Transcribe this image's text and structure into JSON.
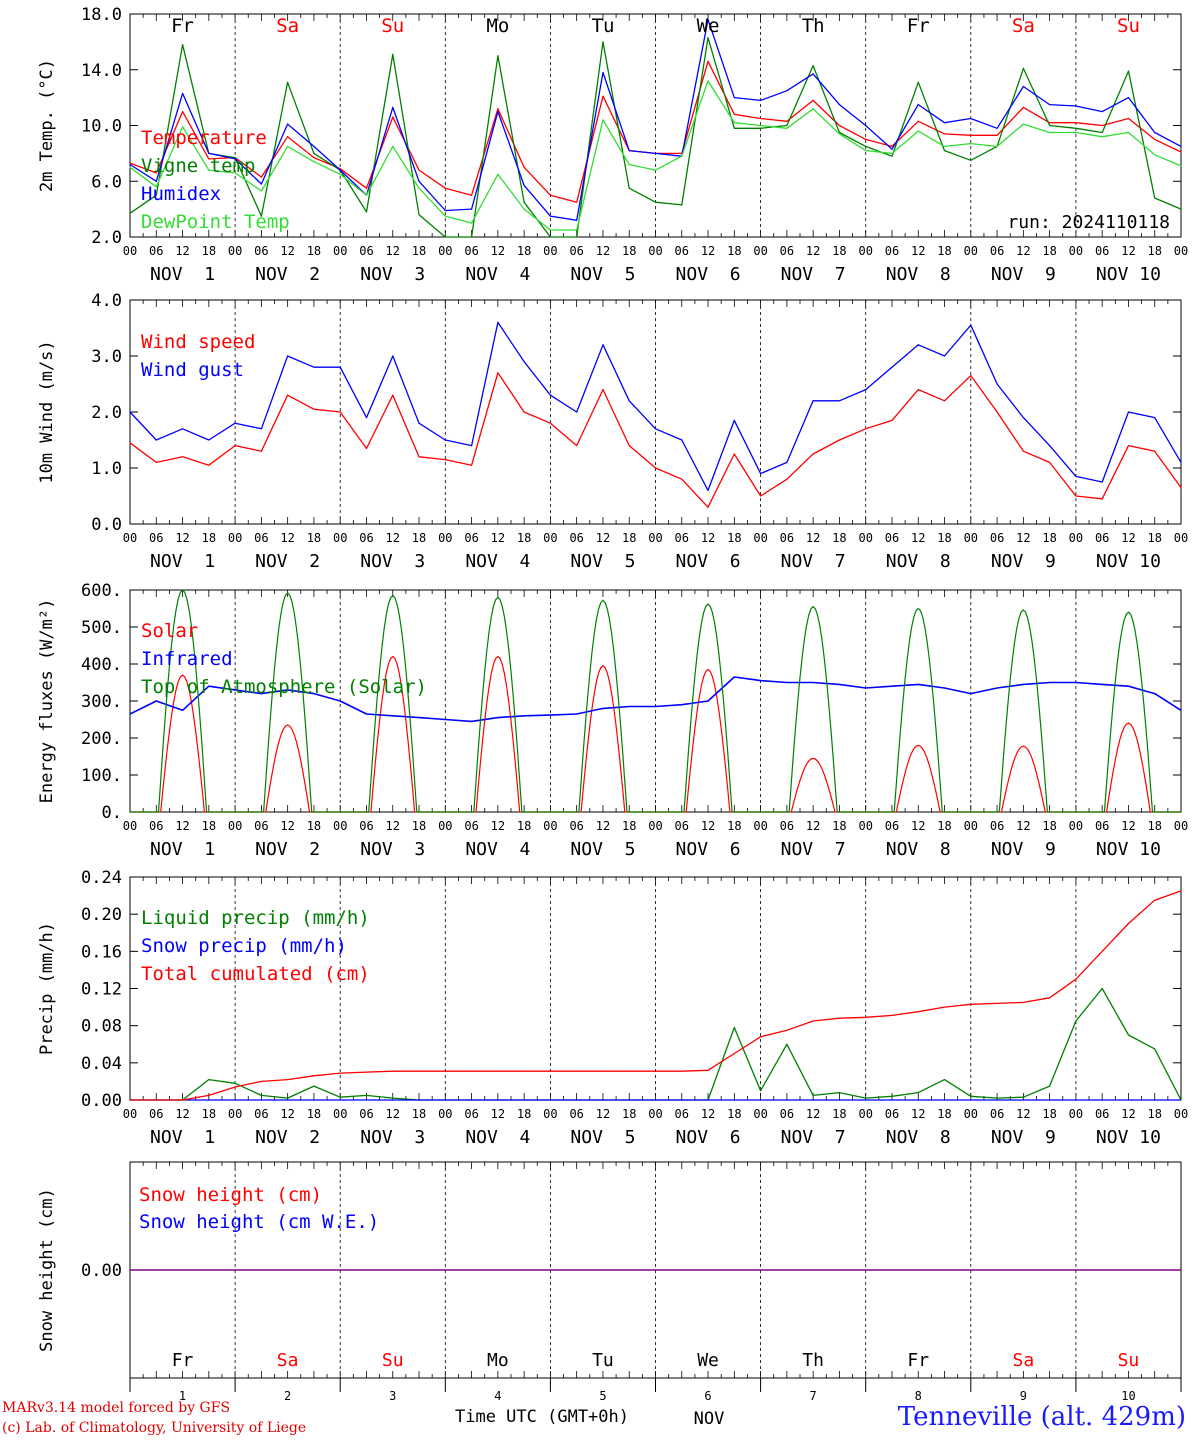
{
  "colors": {
    "red": "#ff0000",
    "green": "#008000",
    "blue": "#0000ff",
    "lightgreen": "#33dd33",
    "purple": "#7f007f",
    "weekend": "#ff0000",
    "weekday": "#000000"
  },
  "days": [
    {
      "weekday": "Fr",
      "weekend": false,
      "date_label": "NOV  1",
      "num": "1"
    },
    {
      "weekday": "Sa",
      "weekend": true,
      "date_label": "NOV  2",
      "num": "2"
    },
    {
      "weekday": "Su",
      "weekend": true,
      "date_label": "NOV  3",
      "num": "3"
    },
    {
      "weekday": "Mo",
      "weekend": false,
      "date_label": "NOV  4",
      "num": "4"
    },
    {
      "weekday": "Tu",
      "weekend": false,
      "date_label": "NOV  5",
      "num": "5"
    },
    {
      "weekday": "We",
      "weekend": false,
      "date_label": "NOV  6",
      "num": "6"
    },
    {
      "weekday": "Th",
      "weekend": false,
      "date_label": "NOV  7",
      "num": "7"
    },
    {
      "weekday": "Fr",
      "weekend": false,
      "date_label": "NOV  8",
      "num": "8"
    },
    {
      "weekday": "Sa",
      "weekend": true,
      "date_label": "NOV  9",
      "num": "9"
    },
    {
      "weekday": "Su",
      "weekend": true,
      "date_label": "NOV 10",
      "num": "10"
    }
  ],
  "hour_ticks": [
    "00",
    "06",
    "12",
    "18"
  ],
  "footer": {
    "credit_1": "MARv3.14 model forced by GFS",
    "credit_2": "(c) Lab. of Climatology, University of Liege",
    "time_axis": "Time UTC (GMT+0h)",
    "month": "NOV",
    "station": "Tenneville (alt. 429m)"
  },
  "chart_data": [
    {
      "type": "line",
      "ylabel": "2m Temp. (°C)",
      "ylim": [
        2.0,
        18.0
      ],
      "yticks": [
        "2.0",
        "6.0",
        "10.0",
        "14.0",
        "18.0"
      ],
      "annotation": "run: 2024110118",
      "x_hours": [
        0,
        6,
        12,
        18,
        24,
        30,
        36,
        42,
        48,
        54,
        60,
        66,
        72,
        78,
        84,
        90,
        96,
        102,
        108,
        114,
        120,
        126,
        132,
        138,
        144,
        150,
        156,
        162,
        168,
        174,
        180,
        186,
        192,
        198,
        204,
        210,
        216,
        222,
        228,
        234,
        240
      ],
      "series": [
        {
          "name": "Temperature",
          "color": "red",
          "values": [
            7.3,
            6.6,
            11.0,
            7.6,
            7.7,
            6.3,
            9.2,
            7.7,
            6.9,
            5.5,
            10.6,
            6.8,
            5.5,
            5.0,
            11.2,
            7.0,
            5.0,
            4.5,
            12.1,
            8.2,
            8.0,
            8.0,
            14.6,
            10.8,
            10.5,
            10.3,
            11.8,
            10.0,
            9.0,
            8.5,
            10.3,
            9.4,
            9.3,
            9.3,
            11.3,
            10.2,
            10.2,
            10.0,
            10.5,
            9.0,
            8.1
          ]
        },
        {
          "name": "Vigne temp",
          "color": "green",
          "values": [
            3.7,
            5.0,
            15.8,
            8.0,
            7.7,
            3.5,
            13.1,
            8.0,
            6.8,
            3.8,
            15.1,
            3.6,
            1.0,
            0.5,
            15.0,
            4.5,
            1.0,
            1.0,
            16.0,
            5.5,
            4.5,
            4.3,
            16.3,
            9.8,
            9.8,
            10.0,
            14.3,
            9.5,
            8.5,
            7.8,
            13.1,
            8.2,
            7.5,
            8.5,
            14.1,
            10.0,
            9.8,
            9.5,
            13.9,
            4.8,
            4.0
          ]
        },
        {
          "name": "Humidex",
          "color": "blue",
          "values": [
            7.2,
            6.0,
            12.3,
            8.0,
            7.6,
            5.8,
            10.1,
            8.5,
            6.8,
            5.0,
            11.3,
            6.0,
            3.9,
            4.0,
            11.0,
            5.7,
            3.5,
            3.2,
            13.8,
            8.2,
            8.0,
            7.8,
            17.6,
            12.0,
            11.8,
            12.5,
            13.7,
            11.5,
            10.0,
            8.3,
            11.5,
            10.2,
            10.5,
            9.8,
            12.8,
            11.5,
            11.4,
            11.0,
            12.0,
            9.5,
            8.5
          ]
        },
        {
          "name": "DewPoint Temp",
          "color": "lightgreen",
          "values": [
            7.0,
            5.6,
            9.9,
            6.8,
            6.6,
            5.3,
            8.5,
            7.4,
            6.5,
            5.0,
            8.5,
            5.5,
            3.5,
            3.0,
            6.5,
            4.0,
            2.5,
            2.5,
            10.4,
            7.2,
            6.8,
            7.8,
            13.2,
            10.2,
            10.0,
            9.8,
            11.2,
            9.4,
            8.2,
            8.0,
            9.6,
            8.5,
            8.7,
            8.5,
            10.1,
            9.5,
            9.5,
            9.2,
            9.5,
            7.9,
            7.1
          ]
        }
      ]
    },
    {
      "type": "line",
      "ylabel": "10m Wind (m/s)",
      "ylim": [
        0.0,
        4.0
      ],
      "yticks": [
        "0.0",
        "1.0",
        "2.0",
        "3.0",
        "4.0"
      ],
      "x_hours": [
        0,
        6,
        12,
        18,
        24,
        30,
        36,
        42,
        48,
        54,
        60,
        66,
        72,
        78,
        84,
        90,
        96,
        102,
        108,
        114,
        120,
        126,
        132,
        138,
        144,
        150,
        156,
        162,
        168,
        174,
        180,
        186,
        192,
        198,
        204,
        210,
        216,
        222,
        228,
        234,
        240
      ],
      "series": [
        {
          "name": "Wind speed",
          "color": "red",
          "values": [
            1.45,
            1.1,
            1.2,
            1.05,
            1.4,
            1.3,
            2.3,
            2.05,
            2.0,
            1.35,
            2.3,
            1.2,
            1.15,
            1.05,
            2.7,
            2.0,
            1.8,
            1.4,
            2.4,
            1.4,
            1.0,
            0.8,
            0.3,
            1.25,
            0.5,
            0.8,
            1.25,
            1.5,
            1.7,
            1.85,
            2.4,
            2.2,
            2.65,
            2.0,
            1.3,
            1.1,
            0.5,
            0.45,
            1.4,
            1.3,
            0.65
          ]
        },
        {
          "name": "Wind gust",
          "color": "blue",
          "values": [
            2.0,
            1.5,
            1.7,
            1.5,
            1.8,
            1.7,
            3.0,
            2.8,
            2.8,
            1.9,
            3.0,
            1.8,
            1.5,
            1.4,
            3.6,
            2.9,
            2.3,
            2.0,
            3.2,
            2.2,
            1.7,
            1.5,
            0.6,
            1.85,
            0.9,
            1.1,
            2.2,
            2.2,
            2.4,
            2.8,
            3.2,
            3.0,
            3.55,
            2.5,
            1.9,
            1.4,
            0.85,
            0.75,
            2.0,
            1.9,
            1.1
          ]
        }
      ]
    },
    {
      "type": "line",
      "ylabel": "Energy fluxes (W/m²)",
      "ylim": [
        0,
        600
      ],
      "yticks": [
        "0.",
        "100.",
        "200.",
        "300.",
        "400.",
        "500.",
        "600."
      ],
      "x_hours": [
        0,
        6,
        12,
        18,
        24,
        30,
        36,
        42,
        48,
        54,
        60,
        66,
        72,
        78,
        84,
        90,
        96,
        102,
        108,
        114,
        120,
        126,
        132,
        138,
        144,
        150,
        156,
        162,
        168,
        174,
        180,
        186,
        192,
        198,
        204,
        210,
        216,
        222,
        228,
        234,
        240
      ],
      "series": [
        {
          "name": "Solar",
          "color": "red",
          "peaks": [
            370,
            235,
            420,
            420,
            395,
            385,
            145,
            180,
            178,
            240
          ],
          "peak_hour": 12
        },
        {
          "name": "Infrared",
          "color": "blue",
          "values": [
            265,
            300,
            275,
            340,
            330,
            320,
            330,
            320,
            300,
            265,
            260,
            255,
            250,
            245,
            255,
            260,
            262,
            265,
            280,
            285,
            285,
            290,
            300,
            365,
            355,
            350,
            350,
            345,
            335,
            340,
            345,
            335,
            320,
            335,
            345,
            350,
            350,
            345,
            340,
            320,
            275
          ]
        },
        {
          "name": "Top of Atmosphere (Solar)",
          "color": "green",
          "peaks": [
            600,
            592,
            585,
            580,
            572,
            562,
            555,
            550,
            546,
            540
          ],
          "peak_hour": 12
        }
      ]
    },
    {
      "type": "line",
      "ylabel": "Precip (mm/h)",
      "ylim": [
        0.0,
        0.24
      ],
      "yticks": [
        "0.00",
        "0.04",
        "0.08",
        "0.12",
        "0.16",
        "0.20",
        "0.24"
      ],
      "x_hours": [
        0,
        6,
        12,
        18,
        24,
        30,
        36,
        42,
        48,
        54,
        60,
        66,
        72,
        78,
        84,
        90,
        96,
        102,
        108,
        114,
        120,
        126,
        132,
        138,
        144,
        150,
        156,
        162,
        168,
        174,
        180,
        186,
        192,
        198,
        204,
        210,
        216,
        222,
        228,
        234,
        240
      ],
      "series": [
        {
          "name": "Liquid precip (mm/h)",
          "color": "green",
          "values": [
            0.0,
            0.0,
            0.0,
            0.022,
            0.018,
            0.005,
            0.002,
            0.015,
            0.003,
            0.005,
            0.002,
            0.0,
            0.0,
            0.0,
            0.0,
            0.0,
            0.0,
            0.0,
            0.0,
            0.0,
            0.0,
            0.0,
            0.0,
            0.078,
            0.01,
            0.06,
            0.005,
            0.008,
            0.002,
            0.004,
            0.008,
            0.022,
            0.004,
            0.002,
            0.003,
            0.015,
            0.085,
            0.12,
            0.07,
            0.055,
            0.0
          ]
        },
        {
          "name": "Snow precip (mm/h)",
          "color": "blue",
          "values": [
            0.0,
            0.0,
            0.0,
            0.0,
            0.0,
            0.0,
            0.0,
            0.0,
            0.0,
            0.0,
            0.0,
            0.0,
            0.0,
            0.0,
            0.0,
            0.0,
            0.0,
            0.0,
            0.0,
            0.0,
            0.0,
            0.0,
            0.0,
            0.0,
            0.0,
            0.0,
            0.0,
            0.0,
            0.0,
            0.0,
            0.0,
            0.0,
            0.0,
            0.0,
            0.0,
            0.0,
            0.0,
            0.0,
            0.0,
            0.0,
            0.0
          ]
        },
        {
          "name": "Total cumulated (cm)",
          "color": "red",
          "values": [
            0.0,
            0.0,
            0.0,
            0.005,
            0.014,
            0.02,
            0.022,
            0.026,
            0.029,
            0.03,
            0.031,
            0.031,
            0.031,
            0.031,
            0.031,
            0.031,
            0.031,
            0.031,
            0.031,
            0.031,
            0.031,
            0.031,
            0.032,
            0.05,
            0.068,
            0.075,
            0.085,
            0.088,
            0.089,
            0.091,
            0.095,
            0.1,
            0.103,
            0.104,
            0.105,
            0.11,
            0.13,
            0.16,
            0.19,
            0.215,
            0.225
          ]
        }
      ]
    },
    {
      "type": "line",
      "ylabel": "Snow height (cm)",
      "ylim": [
        -1,
        1
      ],
      "yticks": [
        "0.00"
      ],
      "x_hours": [
        0,
        240
      ],
      "series": [
        {
          "name": "Snow height (cm)",
          "color": "red",
          "values": [
            0.0,
            0.0
          ]
        },
        {
          "name": "Snow height (cm W.E.)",
          "color": "blue",
          "values": [
            0.0,
            0.0
          ]
        }
      ]
    }
  ]
}
